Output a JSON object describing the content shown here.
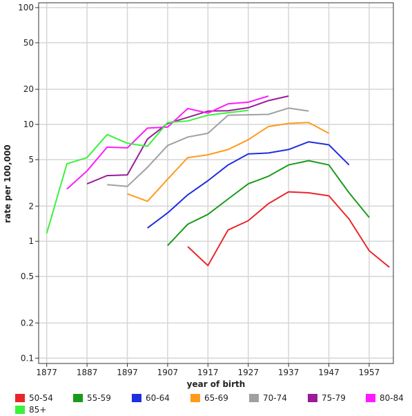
{
  "chart_data": {
    "type": "line",
    "xlabel": "year of birth",
    "ylabel": "rate per 100,000",
    "y_scale": "log",
    "xlim": [
      1875,
      1963
    ],
    "ylim": [
      0.09,
      110
    ],
    "x_ticks": [
      1877,
      1887,
      1897,
      1907,
      1917,
      1927,
      1937,
      1947,
      1957
    ],
    "y_ticks": [
      {
        "value": 0.1,
        "label": "0.1"
      },
      {
        "value": 0.2,
        "label": "0.2"
      },
      {
        "value": 0.5,
        "label": "0.5"
      },
      {
        "value": 1,
        "label": "1"
      },
      {
        "value": 2,
        "label": "2"
      },
      {
        "value": 5,
        "label": "5"
      },
      {
        "value": 10,
        "label": "10"
      },
      {
        "value": 20,
        "label": "20"
      },
      {
        "value": 50,
        "label": "50"
      },
      {
        "value": 100,
        "label": "100"
      }
    ],
    "grid": true,
    "legend_position": "bottom",
    "series": [
      {
        "name": "50-54",
        "color": "#e8262a",
        "x": [
          1912,
          1917,
          1922,
          1927,
          1932,
          1937,
          1942,
          1947,
          1952,
          1957,
          1962
        ],
        "y": [
          0.9,
          0.62,
          1.25,
          1.5,
          2.1,
          2.65,
          2.6,
          2.45,
          1.55,
          0.83,
          0.6
        ]
      },
      {
        "name": "55-59",
        "color": "#1a9a1a",
        "x": [
          1907,
          1912,
          1917,
          1922,
          1927,
          1932,
          1937,
          1942,
          1947,
          1952,
          1957
        ],
        "y": [
          0.92,
          1.4,
          1.7,
          2.3,
          3.1,
          3.6,
          4.5,
          4.9,
          4.5,
          2.6,
          1.6
        ]
      },
      {
        "name": "60-64",
        "color": "#1f2ee0",
        "x": [
          1902,
          1907,
          1912,
          1917,
          1922,
          1927,
          1932,
          1937,
          1942,
          1947,
          1952
        ],
        "y": [
          1.3,
          1.75,
          2.5,
          3.3,
          4.5,
          5.6,
          5.7,
          6.1,
          7.1,
          6.7,
          4.5
        ]
      },
      {
        "name": "65-69",
        "color": "#ff9a1a",
        "x": [
          1897,
          1902,
          1907,
          1912,
          1917,
          1922,
          1927,
          1932,
          1937,
          1942,
          1947
        ],
        "y": [
          2.55,
          2.2,
          3.4,
          5.2,
          5.5,
          6.1,
          7.4,
          9.6,
          10.2,
          10.4,
          8.4
        ]
      },
      {
        "name": "70-74",
        "color": "#a0a0a0",
        "x": [
          1892,
          1897,
          1902,
          1907,
          1912,
          1917,
          1922,
          1927,
          1932,
          1937,
          1942
        ],
        "y": [
          3.05,
          2.95,
          4.3,
          6.6,
          7.8,
          8.4,
          12.0,
          12.1,
          12.2,
          13.8,
          13.0
        ]
      },
      {
        "name": "75-79",
        "color": "#9a1a9a",
        "x": [
          1887,
          1892,
          1897,
          1902,
          1907,
          1912,
          1917,
          1922,
          1927,
          1932,
          1937
        ],
        "y": [
          3.1,
          3.65,
          3.7,
          7.5,
          10.2,
          11.5,
          13.0,
          13.1,
          13.9,
          16.0,
          17.5
        ]
      },
      {
        "name": "80-84",
        "color": "#ff1aff",
        "x": [
          1882,
          1887,
          1892,
          1897,
          1902,
          1907,
          1912,
          1917,
          1922,
          1927,
          1932
        ],
        "y": [
          2.8,
          4.0,
          6.4,
          6.3,
          9.3,
          9.5,
          13.7,
          12.5,
          15.0,
          15.5,
          17.5
        ]
      },
      {
        "name": "85+",
        "color": "#3af23a",
        "x": [
          1877,
          1882,
          1887,
          1892,
          1897,
          1902,
          1907,
          1912,
          1917,
          1922,
          1927
        ],
        "y": [
          1.17,
          4.6,
          5.2,
          8.2,
          6.9,
          6.5,
          10.4,
          10.7,
          12.0,
          12.6,
          13.2
        ]
      }
    ]
  }
}
